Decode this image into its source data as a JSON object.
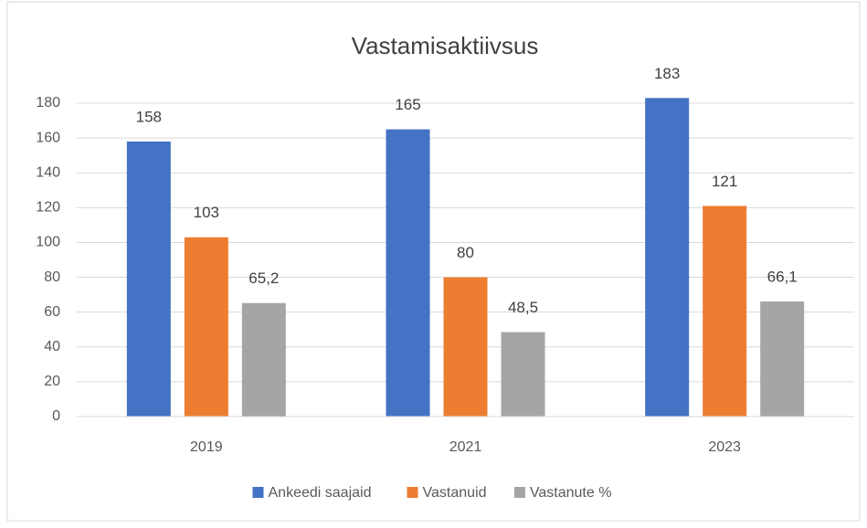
{
  "chart_data": {
    "type": "bar",
    "title": "Vastamisaktiivsus",
    "categories": [
      "2019",
      "2021",
      "2023"
    ],
    "series": [
      {
        "name": "Ankeedi saajaid",
        "color": "#4472c4",
        "values": [
          158,
          165,
          183
        ]
      },
      {
        "name": "Vastanuid",
        "color": "#ed7d31",
        "values": [
          103,
          80,
          121
        ]
      },
      {
        "name": "Vastanute %",
        "color": "#a5a5a5",
        "values": [
          65.2,
          48.5,
          66.1
        ],
        "value_labels": [
          "65,2",
          "48,5",
          "66,1"
        ]
      }
    ],
    "ylim": [
      0,
      180
    ],
    "yticks": [
      0,
      20,
      40,
      60,
      80,
      100,
      120,
      140,
      160,
      180
    ],
    "grid": true,
    "legend": "bottom"
  }
}
